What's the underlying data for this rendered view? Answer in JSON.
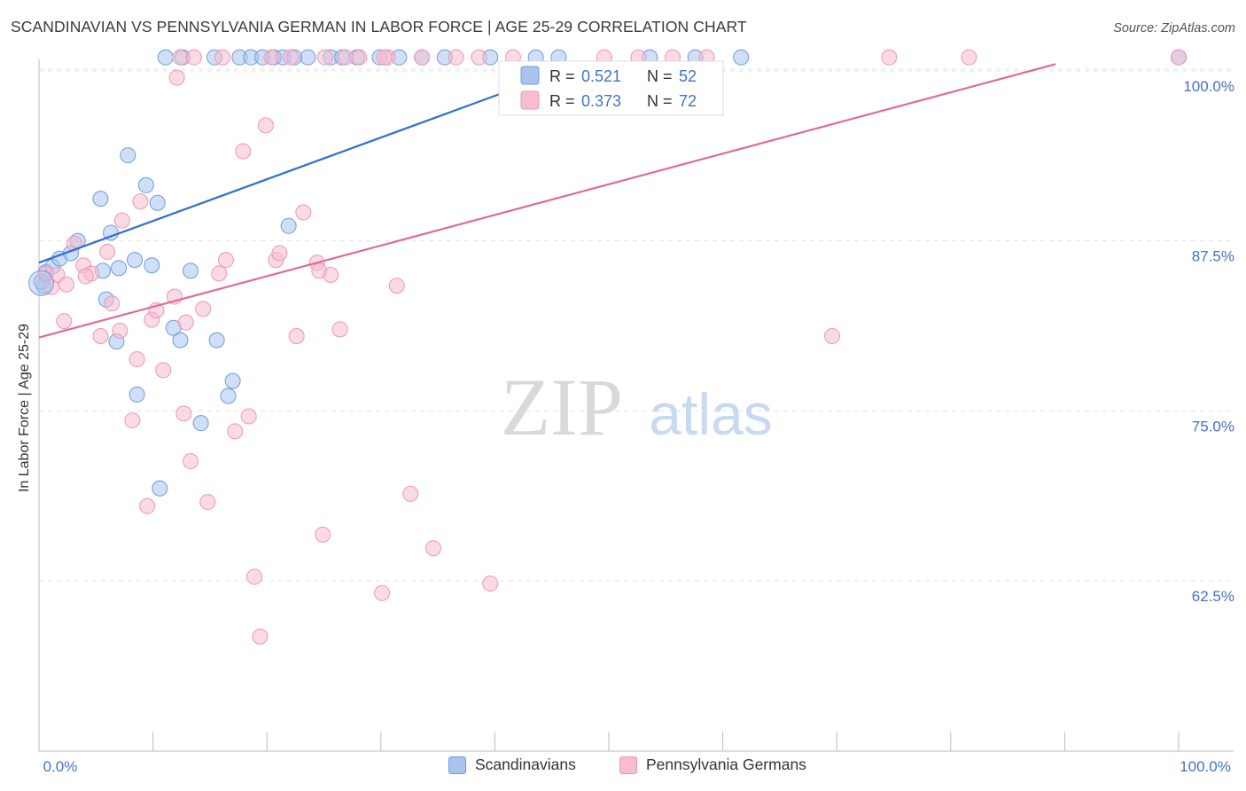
{
  "chart_data": {
    "type": "scatter",
    "title": "SCANDINAVIAN VS PENNSYLVANIA GERMAN IN LABOR FORCE | AGE 25-29 CORRELATION CHART",
    "source": "Source: ZipAtlas.com",
    "xlabel": "",
    "ylabel": "In Labor Force | Age 25-29",
    "xlim": [
      0,
      100
    ],
    "ylim": [
      51.5,
      101.5
    ],
    "x_tick_labels": [
      "0.0%",
      "100.0%"
    ],
    "y_ticks": [
      {
        "value": 100.0,
        "label": "100.0%"
      },
      {
        "value": 87.5,
        "label": "87.5%"
      },
      {
        "value": 75.0,
        "label": "75.0%"
      },
      {
        "value": 62.5,
        "label": "62.5%"
      }
    ],
    "watermark": {
      "zip": "ZIP",
      "atlas": "atlas"
    },
    "legend_inset": [
      {
        "r_label": "R =",
        "r_value": "0.521",
        "n_label": "N =",
        "n_value": "52"
      },
      {
        "r_label": "R =",
        "r_value": "0.373",
        "n_label": "N =",
        "n_value": "72"
      }
    ],
    "series": [
      {
        "name": "Scandinavians",
        "color": "#a8c4ee",
        "stroke": "#6f9be0",
        "trend_color": "#2f6fd0",
        "trend": {
          "x0": 0,
          "y0": 85.9,
          "x1": 47.6,
          "y1": 100.5
        },
        "points": [
          [
            0.4,
            84.2
          ],
          [
            0.6,
            85.2
          ],
          [
            1.2,
            85.6
          ],
          [
            1.8,
            86.2
          ],
          [
            2.8,
            86.6
          ],
          [
            3.4,
            87.5
          ],
          [
            5.6,
            85.3
          ],
          [
            7.0,
            85.5
          ],
          [
            5.4,
            90.6
          ],
          [
            6.3,
            88.1
          ],
          [
            7.8,
            93.8
          ],
          [
            9.4,
            91.6
          ],
          [
            10.4,
            90.3
          ],
          [
            8.4,
            86.1
          ],
          [
            9.9,
            85.7
          ],
          [
            13.3,
            85.3
          ],
          [
            5.9,
            83.2
          ],
          [
            6.8,
            80.1
          ],
          [
            11.8,
            81.1
          ],
          [
            12.4,
            80.2
          ],
          [
            15.6,
            80.2
          ],
          [
            17.0,
            77.2
          ],
          [
            8.6,
            76.2
          ],
          [
            16.6,
            76.1
          ],
          [
            14.2,
            74.1
          ],
          [
            10.6,
            69.3
          ],
          [
            21.9,
            88.6
          ],
          [
            11.1,
            101.0
          ],
          [
            12.6,
            101.0
          ],
          [
            15.4,
            101.0
          ],
          [
            17.6,
            101.0
          ],
          [
            18.6,
            101.0
          ],
          [
            19.6,
            101.0
          ],
          [
            20.6,
            101.0
          ],
          [
            21.4,
            101.0
          ],
          [
            22.4,
            101.0
          ],
          [
            23.6,
            101.0
          ],
          [
            25.6,
            101.0
          ],
          [
            26.6,
            101.0
          ],
          [
            27.9,
            101.0
          ],
          [
            29.9,
            101.0
          ],
          [
            31.6,
            101.0
          ],
          [
            33.6,
            101.0
          ],
          [
            35.6,
            101.0
          ],
          [
            39.6,
            101.0
          ],
          [
            43.6,
            101.0
          ],
          [
            45.6,
            101.0
          ],
          [
            53.6,
            101.0
          ],
          [
            57.6,
            101.0
          ],
          [
            61.6,
            101.0
          ],
          [
            100.0,
            101.0
          ],
          [
            0.2,
            84.5
          ]
        ]
      },
      {
        "name": "Pennsylvania Germans",
        "color": "#f6bccf",
        "stroke": "#ef96b4",
        "trend_color": "#e0699a",
        "trend": {
          "x0": 0,
          "y0": 80.4,
          "x1": 89.2,
          "y1": 100.5
        },
        "points": [
          [
            0.6,
            85.1
          ],
          [
            1.1,
            84.1
          ],
          [
            1.6,
            85.0
          ],
          [
            2.4,
            84.3
          ],
          [
            3.1,
            87.3
          ],
          [
            3.9,
            85.7
          ],
          [
            4.6,
            85.1
          ],
          [
            5.4,
            80.5
          ],
          [
            6.0,
            86.7
          ],
          [
            6.4,
            82.9
          ],
          [
            7.1,
            80.9
          ],
          [
            7.3,
            89.0
          ],
          [
            8.2,
            74.3
          ],
          [
            8.6,
            78.8
          ],
          [
            8.9,
            90.4
          ],
          [
            9.5,
            68.0
          ],
          [
            9.9,
            81.7
          ],
          [
            10.3,
            82.4
          ],
          [
            10.9,
            78.0
          ],
          [
            11.9,
            83.4
          ],
          [
            12.1,
            99.5
          ],
          [
            12.7,
            74.8
          ],
          [
            12.9,
            81.5
          ],
          [
            13.3,
            71.3
          ],
          [
            14.4,
            82.5
          ],
          [
            14.8,
            68.3
          ],
          [
            15.8,
            85.1
          ],
          [
            16.4,
            86.1
          ],
          [
            17.2,
            73.5
          ],
          [
            17.9,
            94.1
          ],
          [
            18.4,
            74.6
          ],
          [
            18.9,
            62.8
          ],
          [
            19.4,
            58.4
          ],
          [
            19.9,
            96.0
          ],
          [
            20.8,
            86.1
          ],
          [
            21.1,
            86.6
          ],
          [
            22.6,
            80.5
          ],
          [
            23.2,
            89.6
          ],
          [
            24.4,
            85.9
          ],
          [
            24.6,
            85.3
          ],
          [
            24.9,
            65.9
          ],
          [
            25.6,
            85.0
          ],
          [
            26.4,
            81.0
          ],
          [
            26.9,
            101.0
          ],
          [
            30.1,
            61.6
          ],
          [
            30.6,
            101.0
          ],
          [
            31.4,
            84.2
          ],
          [
            32.6,
            68.9
          ],
          [
            33.6,
            101.0
          ],
          [
            34.6,
            64.9
          ],
          [
            38.6,
            101.0
          ],
          [
            39.6,
            62.3
          ],
          [
            41.6,
            101.0
          ],
          [
            49.6,
            101.0
          ],
          [
            52.6,
            101.0
          ],
          [
            55.6,
            101.0
          ],
          [
            58.6,
            101.0
          ],
          [
            69.6,
            80.5
          ],
          [
            74.6,
            101.0
          ],
          [
            81.6,
            101.0
          ],
          [
            100.0,
            101.0
          ],
          [
            4.1,
            84.9
          ],
          [
            2.2,
            81.6
          ],
          [
            12.4,
            101.0
          ],
          [
            13.6,
            101.0
          ],
          [
            16.1,
            101.0
          ],
          [
            20.4,
            101.0
          ],
          [
            22.1,
            101.0
          ],
          [
            25.1,
            101.0
          ],
          [
            28.1,
            101.0
          ],
          [
            30.3,
            101.0
          ],
          [
            36.6,
            101.0
          ]
        ]
      }
    ]
  }
}
